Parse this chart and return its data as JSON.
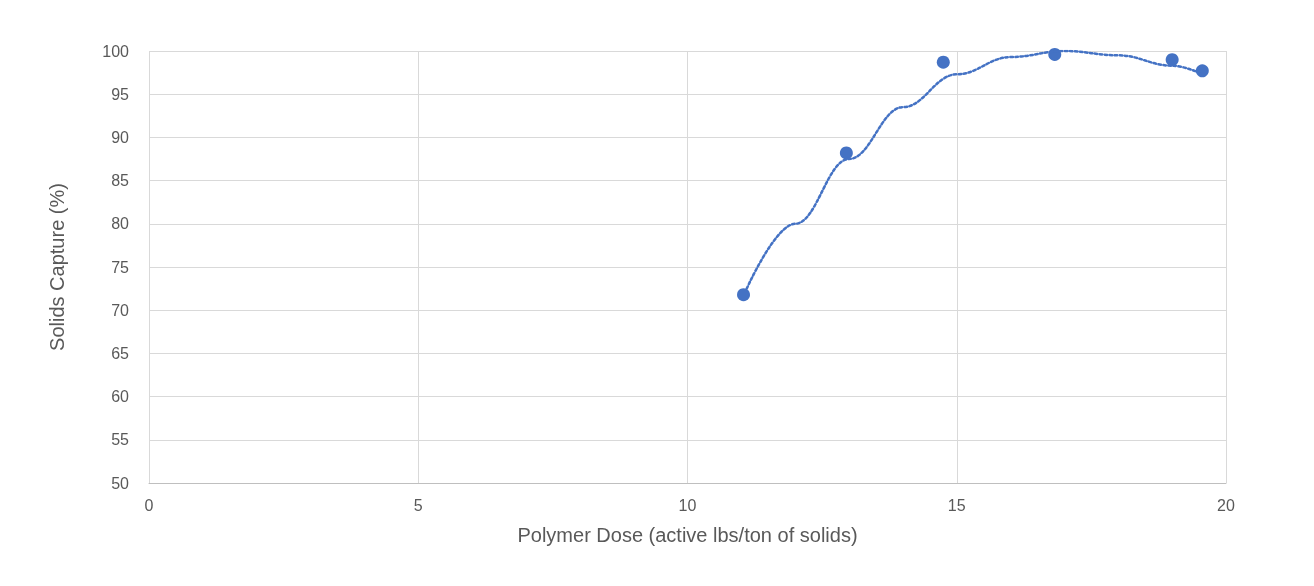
{
  "chart_data": {
    "type": "scatter",
    "xlabel": "Polymer Dose (active lbs/ton of solids)",
    "ylabel": "Solids Capture (%)",
    "xlim": [
      0,
      20
    ],
    "xticks": [
      0,
      5,
      10,
      15,
      20
    ],
    "ylim": [
      50,
      100
    ],
    "yticks": [
      50,
      55,
      60,
      65,
      70,
      75,
      80,
      85,
      90,
      95,
      100
    ],
    "grid": true,
    "marker": "circle",
    "series": [
      {
        "color": "#4472c4",
        "x": [
          11.04,
          12.95,
          14.75,
          16.82,
          19.0,
          19.56
        ],
        "values": [
          71.8,
          88.2,
          98.7,
          99.6,
          99.0,
          97.7
        ]
      },
      {
        "type": "line",
        "color": "#4472c4",
        "line_style": "dotted",
        "marker": "none",
        "x": [
          11.1,
          12,
          13,
          14,
          15,
          16,
          17,
          18,
          19,
          19.5
        ],
        "values": [
          72.5,
          80,
          87.5,
          93.5,
          97.3,
          99.3,
          100,
          99.5,
          98.3,
          97.5
        ]
      }
    ]
  }
}
